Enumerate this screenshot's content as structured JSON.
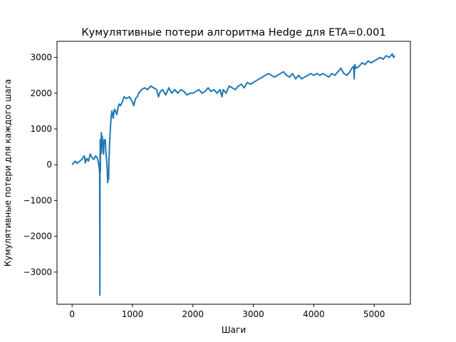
{
  "chart_data": {
    "type": "line",
    "title": "Кумулятивные потери алгоритма Hedge для ETA=0.001",
    "xlabel": "Шаги",
    "ylabel": "Кумулятивные потери для каждого шага",
    "xlim": [
      -250,
      5600
    ],
    "ylim": [
      -3900,
      3450
    ],
    "xticks": [
      0,
      1000,
      2000,
      3000,
      4000,
      5000
    ],
    "yticks": [
      -3000,
      -2000,
      -1000,
      0,
      1000,
      2000,
      3000
    ],
    "xtick_labels": [
      "0",
      "1000",
      "2000",
      "3000",
      "4000",
      "5000"
    ],
    "ytick_labels": [
      "−3000",
      "−2000",
      "−1000",
      "0",
      "1000",
      "2000",
      "3000"
    ],
    "grid": false,
    "line_color": "#1f77b4",
    "series": [
      {
        "x": [
          0,
          50,
          80,
          120,
          160,
          200,
          220,
          240,
          270,
          300,
          330,
          360,
          390,
          420,
          440,
          455,
          460,
          462,
          465,
          468,
          470,
          475,
          480,
          485,
          490,
          500,
          510,
          520,
          530,
          540,
          550,
          560,
          570,
          580,
          590,
          600,
          605,
          610,
          615,
          620,
          630,
          640,
          650,
          660,
          680,
          700,
          720,
          740,
          760,
          780,
          800,
          830,
          860,
          900,
          950,
          1000,
          1020,
          1050,
          1080,
          1100,
          1150,
          1200,
          1250,
          1300,
          1350,
          1400,
          1430,
          1460,
          1500,
          1550,
          1600,
          1650,
          1700,
          1750,
          1800,
          1850,
          1900,
          1950,
          2000,
          2050,
          2100,
          2150,
          2200,
          2250,
          2300,
          2350,
          2400,
          2450,
          2480,
          2500,
          2550,
          2600,
          2650,
          2700,
          2750,
          2800,
          2850,
          2900,
          2950,
          3000,
          3050,
          3100,
          3150,
          3200,
          3250,
          3300,
          3350,
          3400,
          3450,
          3500,
          3550,
          3600,
          3650,
          3700,
          3750,
          3800,
          3850,
          3900,
          3950,
          4000,
          4050,
          4100,
          4150,
          4200,
          4250,
          4300,
          4350,
          4400,
          4450,
          4500,
          4550,
          4600,
          4630,
          4660,
          4670,
          4680,
          4700,
          4750,
          4800,
          4850,
          4900,
          4950,
          5000,
          5050,
          5100,
          5150,
          5200,
          5250,
          5300,
          5320,
          5340
        ],
        "y": [
          0,
          100,
          40,
          90,
          150,
          250,
          50,
          180,
          100,
          300,
          200,
          150,
          250,
          180,
          20,
          -200,
          -3650,
          -300,
          700,
          -200,
          600,
          400,
          300,
          900,
          500,
          800,
          400,
          300,
          700,
          600,
          700,
          300,
          200,
          -100,
          -500,
          -200,
          -400,
          100,
          300,
          600,
          900,
          1200,
          1400,
          1500,
          1300,
          1550,
          1500,
          1400,
          1600,
          1700,
          1650,
          1750,
          1900,
          1850,
          1900,
          1750,
          1650,
          1850,
          1900,
          2000,
          2100,
          2150,
          2100,
          2200,
          2150,
          2100,
          1900,
          2050,
          2100,
          1950,
          2150,
          2000,
          2100,
          2000,
          2100,
          2050,
          1950,
          2000,
          2000,
          2050,
          2100,
          2000,
          2050,
          2150,
          2050,
          2100,
          2000,
          2100,
          1900,
          2100,
          2000,
          2200,
          2150,
          2100,
          2200,
          2250,
          2150,
          2300,
          2250,
          2300,
          2350,
          2400,
          2450,
          2500,
          2550,
          2500,
          2450,
          2500,
          2550,
          2600,
          2500,
          2450,
          2550,
          2400,
          2500,
          2400,
          2450,
          2500,
          2550,
          2500,
          2550,
          2500,
          2550,
          2500,
          2450,
          2550,
          2500,
          2600,
          2700,
          2550,
          2500,
          2600,
          2700,
          2750,
          2400,
          2800,
          2700,
          2750,
          2850,
          2800,
          2900,
          2850,
          2900,
          2950,
          3000,
          2950,
          3050,
          3000,
          3100,
          3000,
          3050
        ]
      }
    ]
  }
}
